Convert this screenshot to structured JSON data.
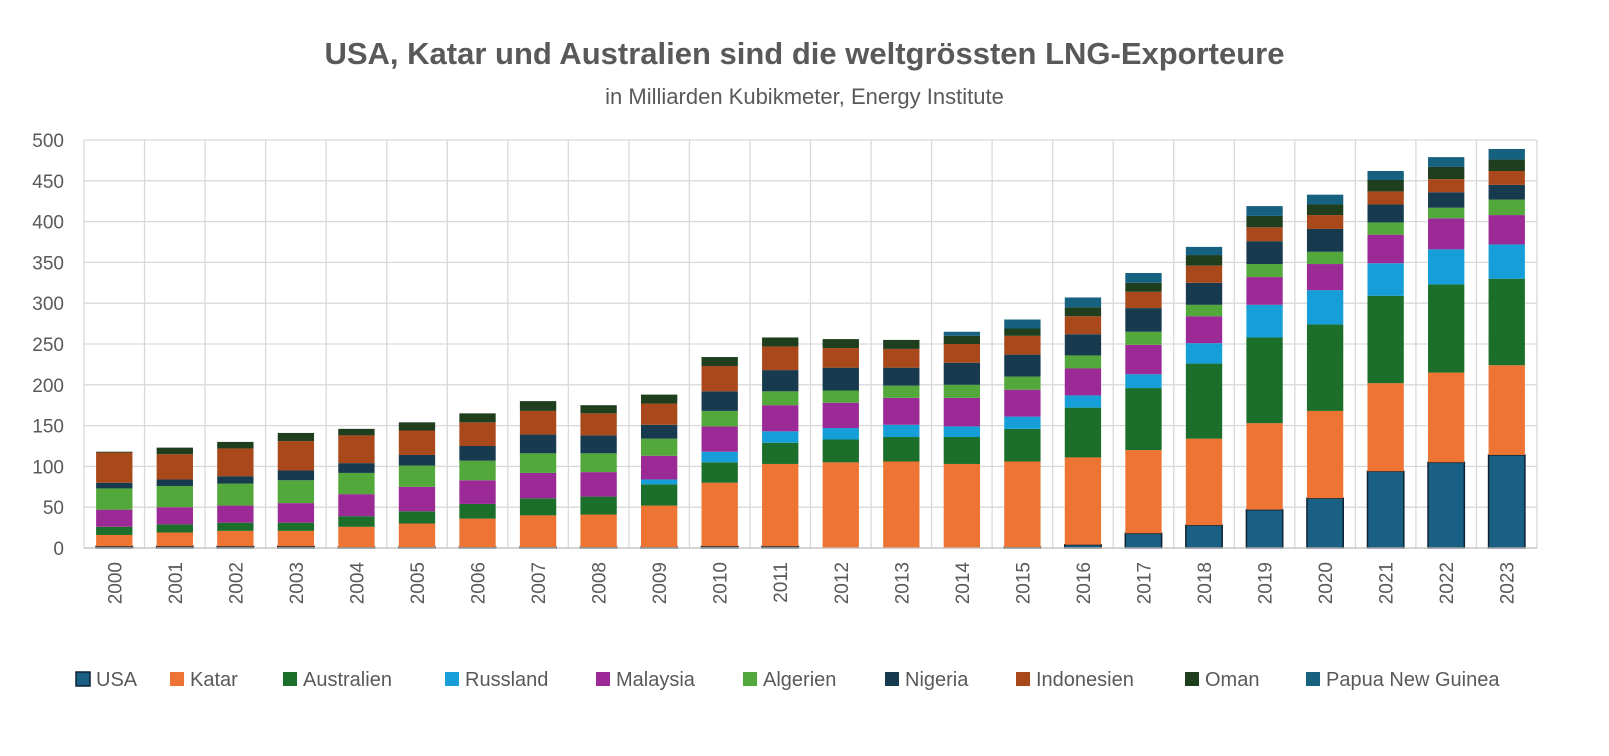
{
  "chart_data": {
    "type": "bar",
    "stacked": true,
    "title": "USA, Katar und Australien sind die weltgrössten LNG-Exporteure",
    "subtitle": "in Milliarden Kubikmeter, Energy Institute",
    "xlabel": "",
    "ylabel": "",
    "ylim": [
      0,
      500
    ],
    "yticks": [
      0,
      50,
      100,
      150,
      200,
      250,
      300,
      350,
      400,
      450,
      500
    ],
    "grid": true,
    "legend_position": "bottom",
    "categories": [
      "2000",
      "2001",
      "2002",
      "2003",
      "2004",
      "2005",
      "2006",
      "2007",
      "2008",
      "2009",
      "2010",
      "2011",
      "2012",
      "2013",
      "2014",
      "2015",
      "2016",
      "2017",
      "2018",
      "2019",
      "2020",
      "2021",
      "2022",
      "2023"
    ],
    "series": [
      {
        "name": "USA",
        "color": "#1a5f84",
        "values": [
          2,
          2,
          2,
          2,
          1,
          1,
          1,
          1,
          1,
          1,
          2,
          2,
          0,
          0,
          0,
          1,
          4,
          18,
          28,
          47,
          61,
          94,
          105,
          114
        ]
      },
      {
        "name": "Katar",
        "color": "#ed7432",
        "values": [
          14,
          17,
          19,
          19,
          25,
          29,
          35,
          39,
          40,
          51,
          78,
          101,
          105,
          106,
          103,
          105,
          107,
          102,
          106,
          106,
          107,
          108,
          110,
          110
        ]
      },
      {
        "name": "Australien",
        "color": "#1c6e2b",
        "values": [
          10,
          10,
          10,
          10,
          13,
          15,
          18,
          21,
          22,
          26,
          25,
          26,
          28,
          30,
          33,
          40,
          61,
          76,
          92,
          105,
          106,
          107,
          108,
          106
        ]
      },
      {
        "name": "Russland",
        "color": "#169ed8",
        "values": [
          0,
          0,
          0,
          0,
          0,
          0,
          0,
          0,
          0,
          6,
          13,
          14,
          14,
          15,
          13,
          15,
          15,
          17,
          25,
          40,
          42,
          40,
          43,
          42
        ]
      },
      {
        "name": "Malaysia",
        "color": "#9c2a96",
        "values": [
          21,
          21,
          21,
          24,
          27,
          30,
          29,
          31,
          30,
          29,
          31,
          32,
          31,
          33,
          35,
          33,
          33,
          36,
          33,
          34,
          32,
          35,
          38,
          36
        ]
      },
      {
        "name": "Algerien",
        "color": "#52a83a",
        "values": [
          26,
          26,
          27,
          28,
          26,
          26,
          24,
          24,
          23,
          21,
          19,
          17,
          15,
          15,
          16,
          16,
          16,
          16,
          14,
          16,
          15,
          15,
          13,
          19
        ]
      },
      {
        "name": "Nigeria",
        "color": "#173a4f",
        "values": [
          7,
          8,
          9,
          12,
          12,
          13,
          18,
          23,
          22,
          17,
          24,
          26,
          28,
          22,
          27,
          27,
          26,
          29,
          27,
          28,
          28,
          22,
          19,
          18
        ]
      },
      {
        "name": "Indonesien",
        "color": "#a9481a",
        "values": [
          37,
          31,
          34,
          36,
          34,
          30,
          29,
          29,
          27,
          26,
          31,
          29,
          24,
          23,
          23,
          23,
          22,
          20,
          21,
          17,
          17,
          16,
          16,
          17
        ]
      },
      {
        "name": "Oman",
        "color": "#1e3e1e",
        "values": [
          1,
          8,
          8,
          10,
          8,
          10,
          11,
          12,
          10,
          11,
          11,
          11,
          11,
          11,
          10,
          9,
          11,
          11,
          13,
          14,
          13,
          14,
          15,
          14
        ]
      },
      {
        "name": "Papua New Guinea",
        "color": "#166080",
        "values": [
          0,
          0,
          0,
          0,
          0,
          0,
          0,
          0,
          0,
          0,
          0,
          0,
          0,
          0,
          5,
          11,
          12,
          12,
          10,
          12,
          12,
          11,
          12,
          13
        ]
      }
    ]
  }
}
